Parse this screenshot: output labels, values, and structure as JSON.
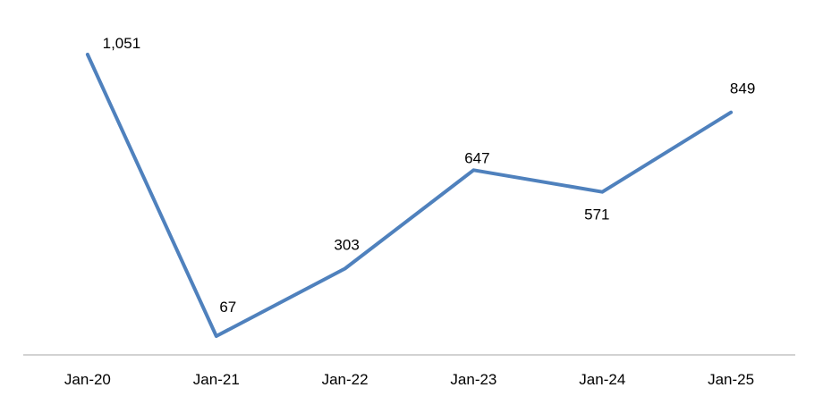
{
  "chart_data": {
    "type": "line",
    "categories": [
      "Jan-20",
      "Jan-21",
      "Jan-22",
      "Jan-23",
      "Jan-24",
      "Jan-25"
    ],
    "series": [
      {
        "values": [
          1051,
          67,
          303,
          647,
          571,
          849
        ],
        "value_labels": [
          "1,051",
          "67",
          "303",
          "647",
          "571",
          "849"
        ]
      }
    ],
    "ylim": [
      0,
      1100
    ],
    "grid": false,
    "legend": "none",
    "line_color": "#4F81BD",
    "axis_color": "#A6A6A6"
  }
}
